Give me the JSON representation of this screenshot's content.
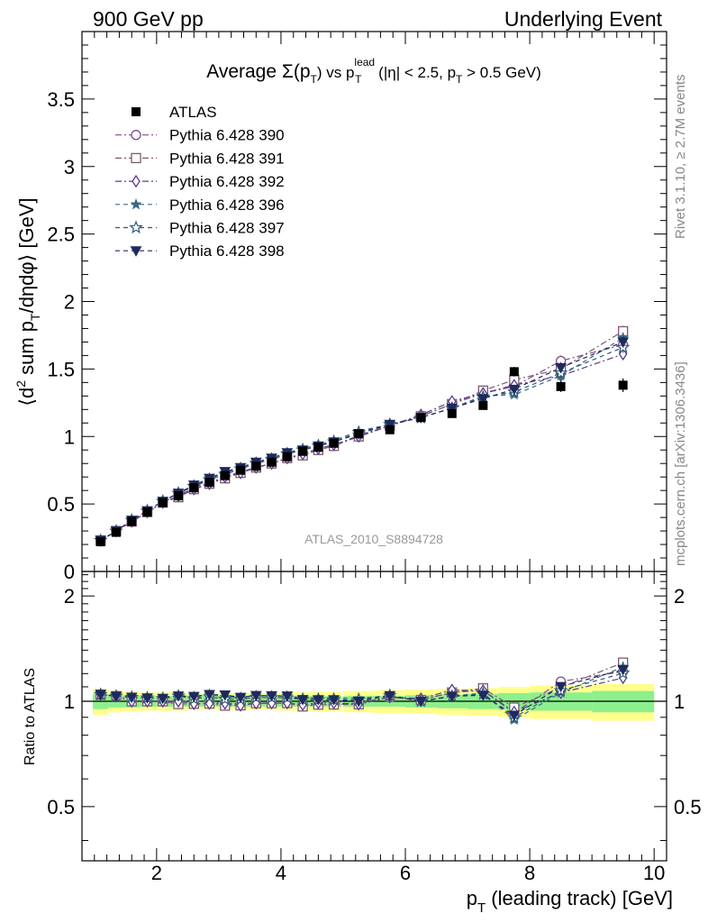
{
  "header": {
    "left": "900 GeV pp",
    "right": "Underlying Event"
  },
  "side_texts": {
    "rivet": "Rivet 3.1.10, ≥ 2.7M events",
    "mcplots": "mcplots.cern.ch [arXiv:1306.3436]"
  },
  "chart_data": {
    "type": "scatter",
    "title": {
      "average": "Average ",
      "sigma": "Σ(p",
      "sigma_sub": "T",
      "vs": ") vs p",
      "lead_sup": "lead",
      "lead_sub": "T",
      "cuts1": " (|η| < 2.5, p",
      "cuts_sub": "T",
      "cuts2": " > 0.5 GeV)"
    },
    "xlabel": {
      "main": "p",
      "sub": "T",
      "rest": " (leading track) [GeV]"
    },
    "ylabel": {
      "a": "⟨d",
      "sup": "2",
      "b": " sum p",
      "sub": "T",
      "c": "/dηdφ⟩ [GeV]"
    },
    "ratio_ylabel": "Ratio to ATLAS",
    "watermark": "ATLAS_2010_S8894728",
    "xlim": [
      0.8,
      10.2
    ],
    "ylim": [
      0,
      4.0
    ],
    "ratio_ylim": [
      0.35,
      2.35
    ],
    "x_ticks": [
      "2",
      "4",
      "6",
      "8",
      "10"
    ],
    "y_ticks": [
      "0",
      "0.5",
      "1",
      "1.5",
      "2",
      "2.5",
      "3",
      "3.5"
    ],
    "ratio_ticks": [
      "0.5",
      "1",
      "2"
    ],
    "x": [
      1.1,
      1.35,
      1.6,
      1.85,
      2.1,
      2.35,
      2.6,
      2.85,
      3.1,
      3.35,
      3.6,
      3.85,
      4.1,
      4.35,
      4.6,
      4.85,
      5.25,
      5.75,
      6.25,
      6.75,
      7.25,
      7.75,
      8.5,
      9.5
    ],
    "x_halfwidth": [
      0.125,
      0.125,
      0.125,
      0.125,
      0.125,
      0.125,
      0.125,
      0.125,
      0.125,
      0.125,
      0.125,
      0.125,
      0.125,
      0.125,
      0.125,
      0.125,
      0.25,
      0.25,
      0.25,
      0.25,
      0.25,
      0.25,
      0.5,
      0.5
    ],
    "data": {
      "name": "ATLAS",
      "values": [
        0.22,
        0.29,
        0.37,
        0.44,
        0.51,
        0.56,
        0.62,
        0.66,
        0.71,
        0.75,
        0.78,
        0.81,
        0.85,
        0.89,
        0.92,
        0.95,
        1.02,
        1.05,
        1.14,
        1.17,
        1.23,
        1.48,
        1.37,
        1.38
      ],
      "err_stat": [
        0.01,
        0.01,
        0.01,
        0.01,
        0.01,
        0.01,
        0.01,
        0.01,
        0.01,
        0.01,
        0.01,
        0.01,
        0.01,
        0.01,
        0.01,
        0.01,
        0.015,
        0.02,
        0.025,
        0.03,
        0.03,
        0.035,
        0.04,
        0.05
      ],
      "band_green": [
        0.05,
        0.04,
        0.04,
        0.035,
        0.035,
        0.035,
        0.035,
        0.035,
        0.035,
        0.035,
        0.035,
        0.035,
        0.035,
        0.035,
        0.035,
        0.035,
        0.035,
        0.035,
        0.04,
        0.045,
        0.05,
        0.055,
        0.06,
        0.07
      ],
      "band_yellow": [
        0.085,
        0.07,
        0.065,
        0.06,
        0.06,
        0.06,
        0.055,
        0.055,
        0.055,
        0.055,
        0.055,
        0.055,
        0.06,
        0.06,
        0.065,
        0.065,
        0.07,
        0.075,
        0.08,
        0.085,
        0.09,
        0.1,
        0.11,
        0.12
      ]
    },
    "series": [
      {
        "name": "Pythia 6.428 390",
        "color": "#7b4f8f",
        "marker": "circle-open",
        "dash": "7,3,2,3",
        "values": [
          0.23,
          0.3,
          0.37,
          0.44,
          0.51,
          0.56,
          0.62,
          0.66,
          0.7,
          0.74,
          0.77,
          0.8,
          0.84,
          0.87,
          0.9,
          0.93,
          1.01,
          1.08,
          1.15,
          1.24,
          1.32,
          1.37,
          1.56,
          1.68
        ]
      },
      {
        "name": "Pythia 6.428 391",
        "color": "#7d5a6e",
        "marker": "square-open",
        "dash": "7,3,2,3",
        "values": [
          0.23,
          0.3,
          0.37,
          0.44,
          0.51,
          0.55,
          0.61,
          0.65,
          0.69,
          0.73,
          0.77,
          0.8,
          0.84,
          0.86,
          0.9,
          0.93,
          1.0,
          1.08,
          1.15,
          1.24,
          1.34,
          1.42,
          1.5,
          1.78
        ]
      },
      {
        "name": "Pythia 6.428 392",
        "color": "#5b3b8c",
        "marker": "diamond-open",
        "dash": "7,3,2,3",
        "values": [
          0.23,
          0.3,
          0.37,
          0.44,
          0.51,
          0.56,
          0.61,
          0.65,
          0.7,
          0.73,
          0.77,
          0.8,
          0.84,
          0.87,
          0.91,
          0.94,
          1.0,
          1.08,
          1.16,
          1.26,
          1.32,
          1.38,
          1.45,
          1.61
        ]
      },
      {
        "name": "Pythia 6.428 396",
        "color": "#3d6b82",
        "marker": "star-filled",
        "dash": "5,4",
        "values": [
          0.23,
          0.3,
          0.38,
          0.45,
          0.52,
          0.58,
          0.64,
          0.69,
          0.73,
          0.77,
          0.81,
          0.84,
          0.88,
          0.91,
          0.94,
          0.97,
          1.04,
          1.09,
          1.14,
          1.21,
          1.3,
          1.31,
          1.45,
          1.73
        ]
      },
      {
        "name": "Pythia 6.428 397",
        "color": "#2e5a75",
        "marker": "star-open",
        "dash": "5,4",
        "values": [
          0.23,
          0.3,
          0.38,
          0.45,
          0.52,
          0.58,
          0.63,
          0.68,
          0.72,
          0.76,
          0.8,
          0.83,
          0.87,
          0.9,
          0.93,
          0.96,
          1.03,
          1.09,
          1.14,
          1.21,
          1.29,
          1.33,
          1.47,
          1.66
        ]
      },
      {
        "name": "Pythia 6.428 398",
        "color": "#1f2a5c",
        "marker": "triangle-down",
        "dash": "5,4",
        "values": [
          0.23,
          0.3,
          0.38,
          0.45,
          0.52,
          0.58,
          0.64,
          0.69,
          0.74,
          0.77,
          0.81,
          0.84,
          0.88,
          0.9,
          0.93,
          0.96,
          1.02,
          1.09,
          1.14,
          1.21,
          1.28,
          1.35,
          1.51,
          1.7
        ]
      }
    ]
  }
}
